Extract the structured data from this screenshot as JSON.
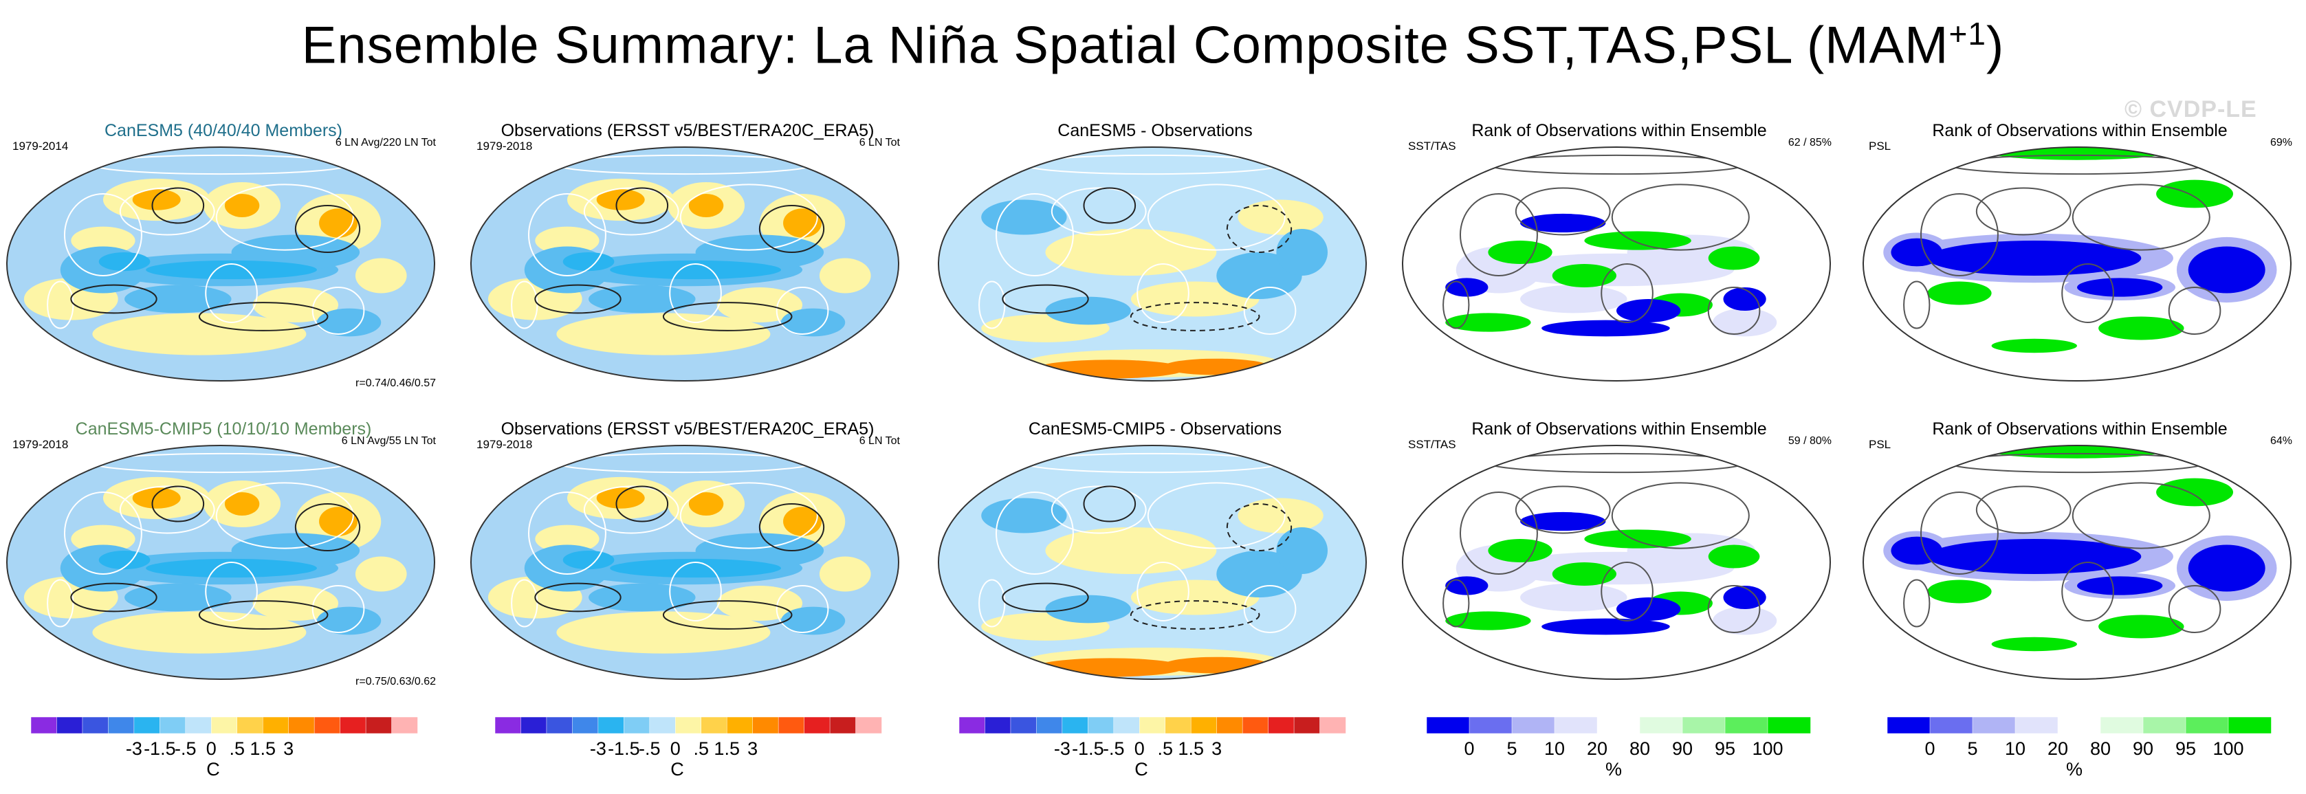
{
  "title": {
    "main": "Ensemble Summary: La Niña Spatial Composite SST,TAS,PSL (MAM",
    "sup": "+1",
    "close": ")"
  },
  "watermark": "© CVDP-LE",
  "colors": {
    "title_model_row1": "#1f6f8b",
    "title_model_row2": "#5a8a5a",
    "ocean_base": "#a9d6f5",
    "land_fill": "#ffffff"
  },
  "panels": [
    {
      "id": "r1c1",
      "kind": "sst",
      "title": "CanESM5 (40/40/40 Members)",
      "title_color": "#1f6f8b",
      "left": "1979-2014",
      "right": "6 LN Avg/220 LN Tot",
      "corr": "r=0.74/0.46/0.57"
    },
    {
      "id": "r1c2",
      "kind": "sst",
      "title": "Observations (ERSST v5/BEST/ERA20C_ERA5)",
      "title_color": "#000000",
      "left": "1979-2018",
      "right": "6 LN Tot",
      "corr": ""
    },
    {
      "id": "r1c3",
      "kind": "diff",
      "title": "CanESM5 - Observations",
      "title_color": "#000000",
      "left": "",
      "right": "",
      "corr": ""
    },
    {
      "id": "r1c4",
      "kind": "rank",
      "title": "Rank of Observations within Ensemble",
      "title_color": "#000000",
      "left": "SST/TAS",
      "right": "62 /  85%",
      "corr": ""
    },
    {
      "id": "r1c5",
      "kind": "rankpsl",
      "title": "Rank of Observations within Ensemble",
      "title_color": "#000000",
      "left": "PSL",
      "right": "69%",
      "corr": ""
    },
    {
      "id": "r2c1",
      "kind": "sst",
      "title": "CanESM5-CMIP5 (10/10/10 Members)",
      "title_color": "#5a8a5a",
      "left": "1979-2018",
      "right": "6 LN Avg/55 LN Tot",
      "corr": "r=0.75/0.63/0.62"
    },
    {
      "id": "r2c2",
      "kind": "sst",
      "title": "Observations (ERSST v5/BEST/ERA20C_ERA5)",
      "title_color": "#000000",
      "left": "1979-2018",
      "right": "6 LN Tot",
      "corr": ""
    },
    {
      "id": "r2c3",
      "kind": "diff",
      "title": "CanESM5-CMIP5 - Observations",
      "title_color": "#000000",
      "left": "",
      "right": "",
      "corr": ""
    },
    {
      "id": "r2c4",
      "kind": "rank",
      "title": "Rank of Observations within Ensemble",
      "title_color": "#000000",
      "left": "SST/TAS",
      "right": "59 /  80%",
      "corr": ""
    },
    {
      "id": "r2c5",
      "kind": "rankpsl",
      "title": "Rank of Observations within Ensemble",
      "title_color": "#000000",
      "left": "PSL",
      "right": "64%",
      "corr": ""
    }
  ],
  "colorbars": [
    {
      "id": "cb1",
      "kind": "temp",
      "unit": "C",
      "ticks": [
        "-3",
        "-1.5",
        "-.5",
        "0",
        ".5",
        "1.5",
        "3"
      ],
      "colors": [
        "#8a2be2",
        "#2a1fd6",
        "#3a55e0",
        "#3f87ea",
        "#2ab4f0",
        "#7fcdf5",
        "#bfe4fa",
        "#fdf5a6",
        "#ffd24a",
        "#ffb000",
        "#ff8a00",
        "#ff5a10",
        "#e62020",
        "#c81e1e",
        "#ffb3b3"
      ]
    },
    {
      "id": "cb2",
      "kind": "temp",
      "unit": "C",
      "ticks": [
        "-3",
        "-1.5",
        "-.5",
        "0",
        ".5",
        "1.5",
        "3"
      ],
      "colors": [
        "#8a2be2",
        "#2a1fd6",
        "#3a55e0",
        "#3f87ea",
        "#2ab4f0",
        "#7fcdf5",
        "#bfe4fa",
        "#fdf5a6",
        "#ffd24a",
        "#ffb000",
        "#ff8a00",
        "#ff5a10",
        "#e62020",
        "#c81e1e",
        "#ffb3b3"
      ]
    },
    {
      "id": "cb3",
      "kind": "temp",
      "unit": "C",
      "ticks": [
        "-3",
        "-1.5",
        "-.5",
        "0",
        ".5",
        "1.5",
        "3"
      ],
      "colors": [
        "#8a2be2",
        "#2a1fd6",
        "#3a55e0",
        "#3f87ea",
        "#2ab4f0",
        "#7fcdf5",
        "#bfe4fa",
        "#fdf5a6",
        "#ffd24a",
        "#ffb000",
        "#ff8a00",
        "#ff5a10",
        "#e62020",
        "#c81e1e",
        "#ffb3b3"
      ]
    },
    {
      "id": "cb4",
      "kind": "rank",
      "unit": "%",
      "ticks": [
        "0",
        "5",
        "10",
        "20",
        "80",
        "90",
        "95",
        "100"
      ],
      "colors": [
        "#0000ee",
        "#6a6ef0",
        "#b0b4f5",
        "#e1e3fb",
        "#ffffff",
        "#e0fbe0",
        "#a8f5a8",
        "#5cee5c",
        "#00e600"
      ]
    },
    {
      "id": "cb5",
      "kind": "rank",
      "unit": "%",
      "ticks": [
        "0",
        "5",
        "10",
        "20",
        "80",
        "90",
        "95",
        "100"
      ],
      "colors": [
        "#0000ee",
        "#6a6ef0",
        "#b0b4f5",
        "#e1e3fb",
        "#ffffff",
        "#e0fbe0",
        "#a8f5a8",
        "#5cee5c",
        "#00e600"
      ]
    }
  ],
  "chart_data": [
    {
      "type": "heatmap",
      "panel": "r1c1",
      "title": "CanESM5 (40/40/40 Members)",
      "variable": "SST/TAS composite anomaly",
      "unit": "C",
      "levels": [
        -3,
        -1.5,
        -0.5,
        0,
        0.5,
        1.5,
        3
      ],
      "period": "1979-2014",
      "note": "6 LN Avg/220 LN Tot",
      "pattern_correlation": "r=0.74/0.46/0.57"
    },
    {
      "type": "heatmap",
      "panel": "r1c2",
      "title": "Observations (ERSST v5/BEST/ERA20C_ERA5)",
      "unit": "C",
      "period": "1979-2018",
      "note": "6 LN Tot"
    },
    {
      "type": "heatmap",
      "panel": "r1c3",
      "title": "CanESM5 - Observations",
      "unit": "C"
    },
    {
      "type": "heatmap",
      "panel": "r1c4",
      "title": "Rank of Observations within Ensemble",
      "unit": "%",
      "variable": "SST/TAS",
      "summary": "62 /  85%",
      "levels": [
        0,
        5,
        10,
        20,
        80,
        90,
        95,
        100
      ]
    },
    {
      "type": "heatmap",
      "panel": "r1c5",
      "title": "Rank of Observations within Ensemble",
      "unit": "%",
      "variable": "PSL",
      "summary": "69%"
    },
    {
      "type": "heatmap",
      "panel": "r2c1",
      "title": "CanESM5-CMIP5 (10/10/10 Members)",
      "unit": "C",
      "period": "1979-2018",
      "note": "6 LN Avg/55 LN Tot",
      "pattern_correlation": "r=0.75/0.63/0.62"
    },
    {
      "type": "heatmap",
      "panel": "r2c2",
      "title": "Observations (ERSST v5/BEST/ERA20C_ERA5)",
      "unit": "C",
      "period": "1979-2018",
      "note": "6 LN Tot"
    },
    {
      "type": "heatmap",
      "panel": "r2c3",
      "title": "CanESM5-CMIP5 - Observations",
      "unit": "C"
    },
    {
      "type": "heatmap",
      "panel": "r2c4",
      "title": "Rank of Observations within Ensemble",
      "unit": "%",
      "variable": "SST/TAS",
      "summary": "59 /  80%"
    },
    {
      "type": "heatmap",
      "panel": "r2c5",
      "title": "Rank of Observations within Ensemble",
      "unit": "%",
      "variable": "PSL",
      "summary": "64%"
    }
  ]
}
